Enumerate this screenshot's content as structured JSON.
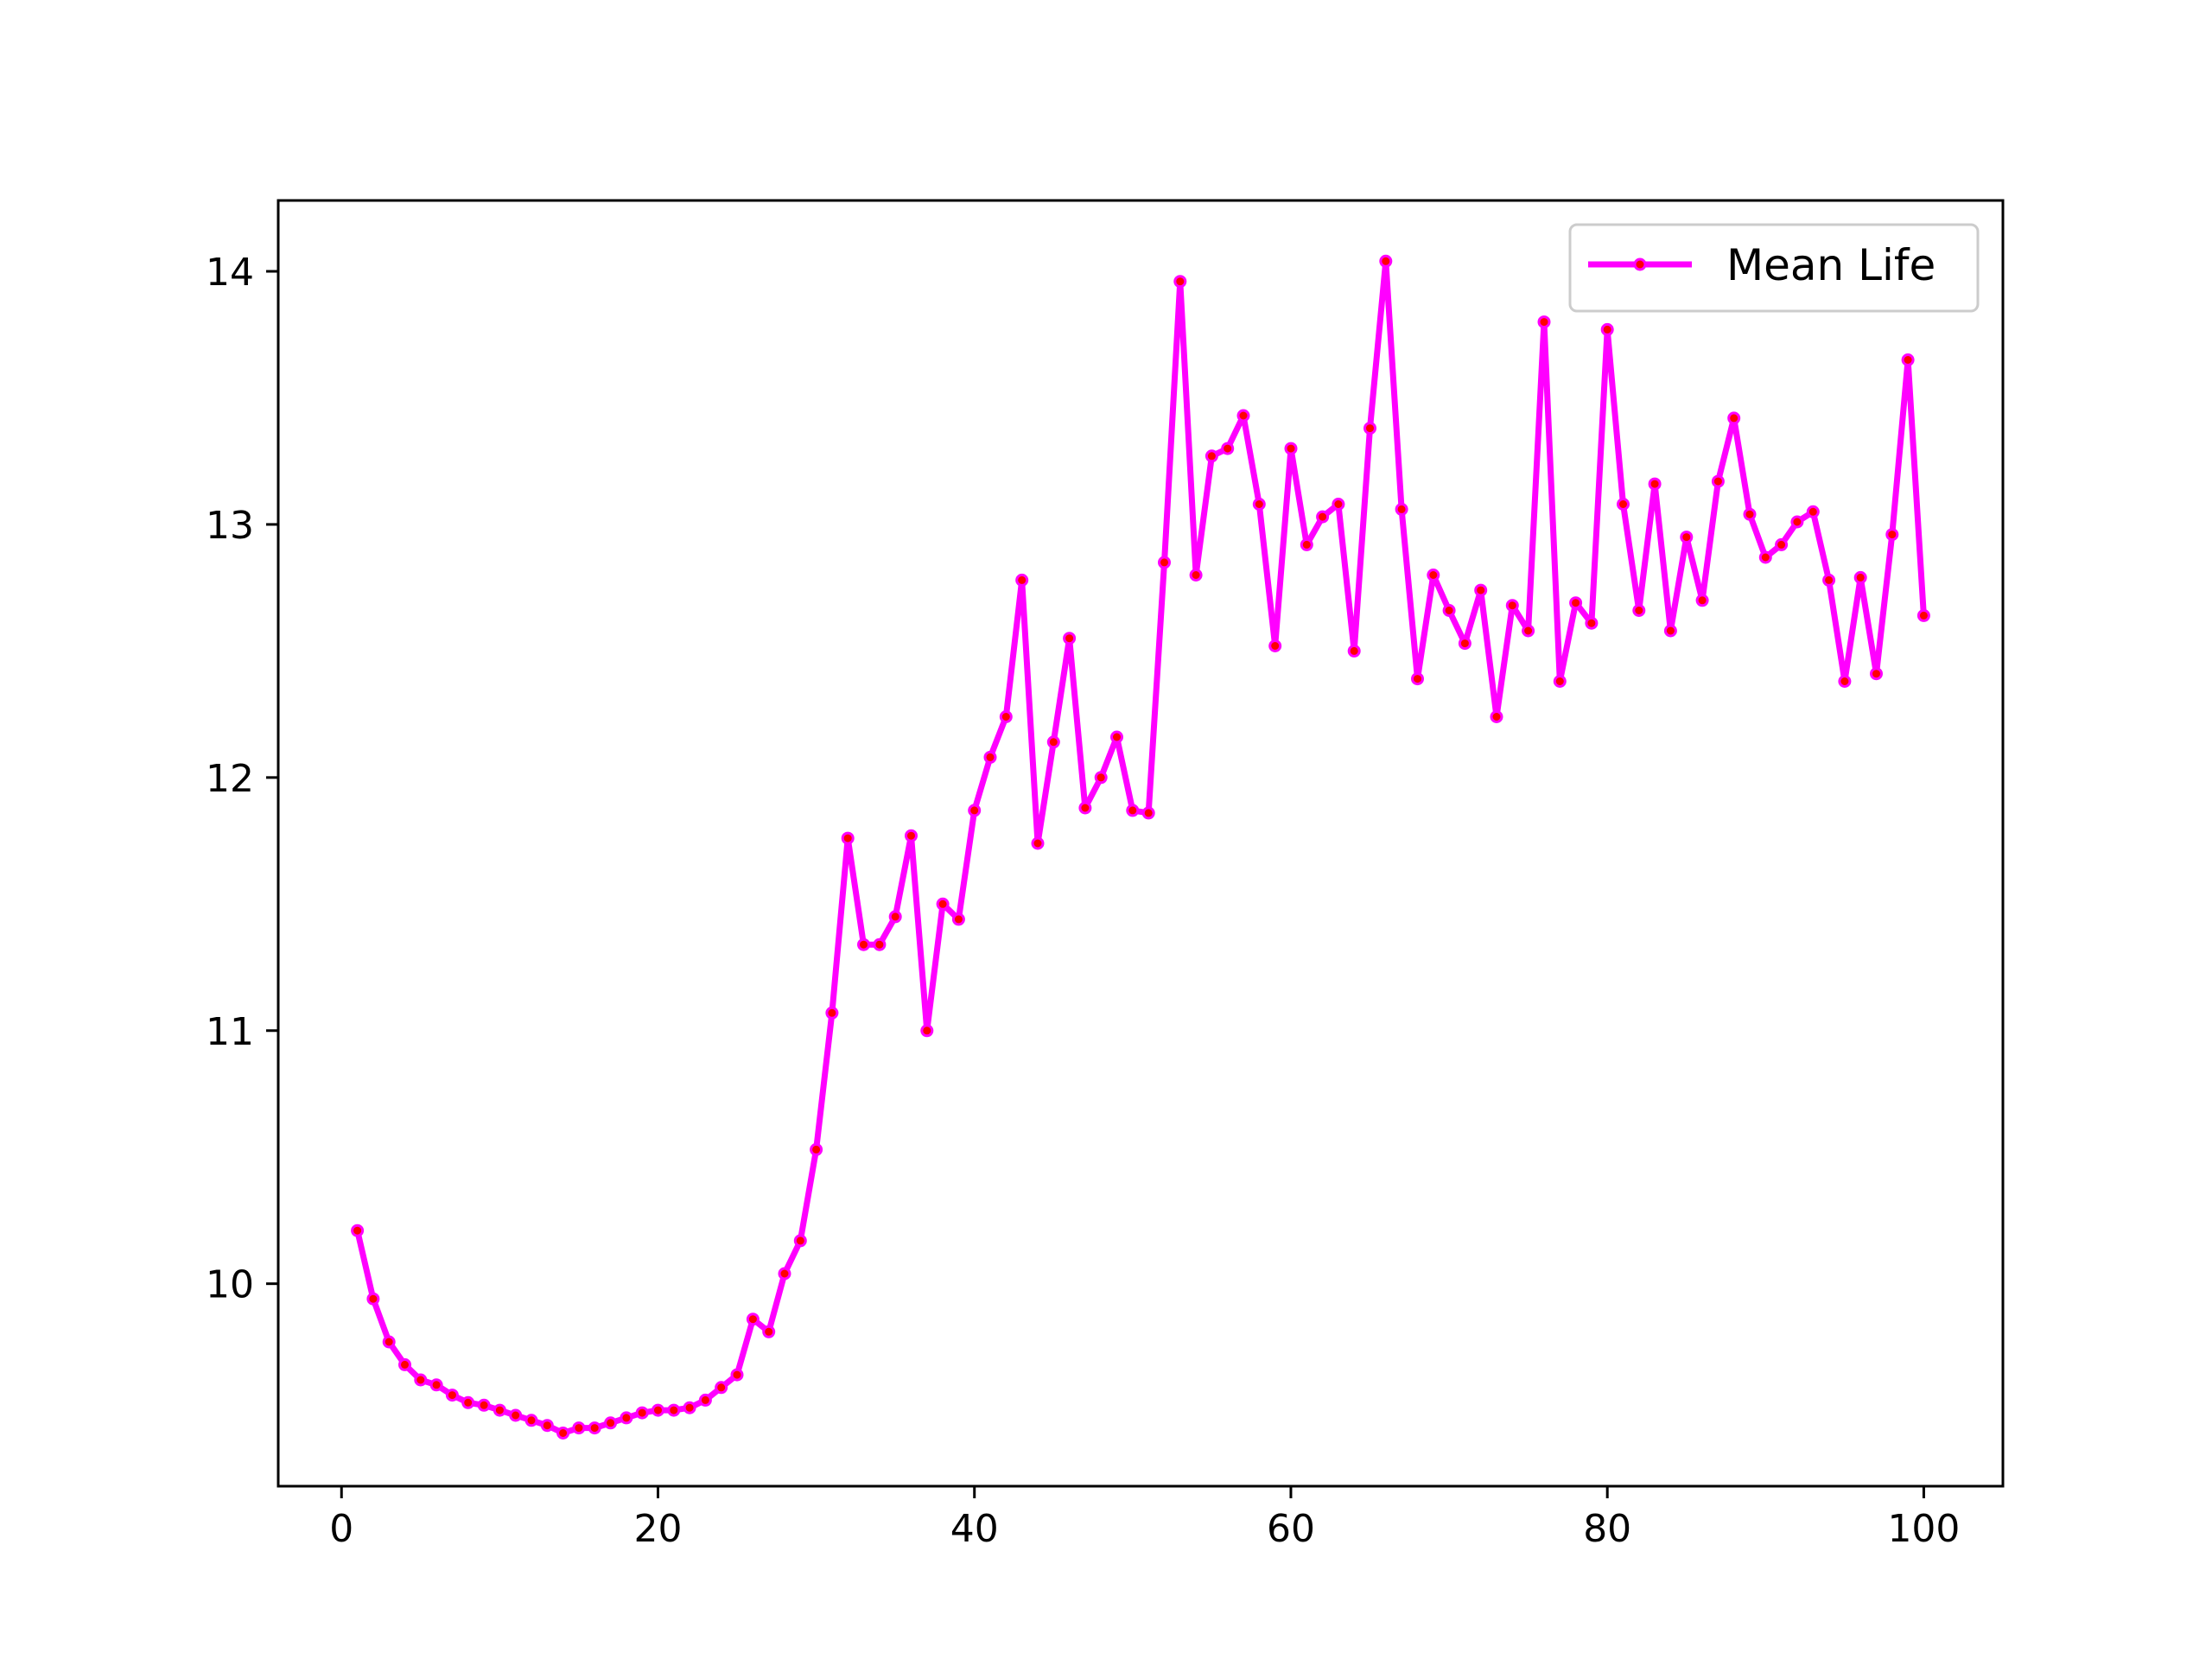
{
  "chart_data": {
    "type": "line",
    "title": "",
    "xlabel": "",
    "ylabel": "",
    "xlim": [
      -4,
      105
    ],
    "ylim": [
      9.2,
      14.28
    ],
    "xticks": [
      0,
      20,
      40,
      60,
      80,
      100
    ],
    "yticks": [
      10,
      11,
      12,
      13,
      14
    ],
    "grid": false,
    "legend_position": "top-right",
    "colors": {
      "line": "#ff00ff",
      "marker": "#ff0000",
      "axes": "#000000",
      "legend_border": "#cccccc"
    },
    "series": [
      {
        "name": "Mean Life",
        "x": [
          1,
          2,
          3,
          4,
          5,
          6,
          7,
          8,
          9,
          10,
          11,
          12,
          13,
          14,
          15,
          16,
          17,
          18,
          19,
          20,
          21,
          22,
          23,
          24,
          25,
          26,
          27,
          28,
          29,
          30,
          31,
          32,
          33,
          34,
          35,
          36,
          37,
          38,
          39,
          40,
          41,
          42,
          43,
          44,
          45,
          46,
          47,
          48,
          49,
          50,
          51,
          52,
          53,
          54,
          55,
          56,
          57,
          58,
          59,
          60,
          61,
          62,
          63,
          64,
          65,
          66,
          67,
          68,
          69,
          70,
          71,
          72,
          73,
          74,
          75,
          76,
          77,
          78,
          79,
          80,
          81,
          82,
          83,
          84,
          85,
          86,
          87,
          88,
          89,
          90,
          91,
          92,
          93,
          94,
          95,
          96,
          97,
          98,
          99,
          100
        ],
        "y": [
          10.21,
          9.94,
          9.77,
          9.68,
          9.62,
          9.6,
          9.56,
          9.53,
          9.52,
          9.5,
          9.48,
          9.46,
          9.44,
          9.41,
          9.43,
          9.43,
          9.45,
          9.47,
          9.49,
          9.5,
          9.5,
          9.51,
          9.54,
          9.59,
          9.64,
          9.86,
          9.81,
          10.04,
          10.17,
          10.53,
          11.07,
          11.76,
          11.34,
          11.34,
          11.45,
          11.77,
          11.0,
          11.5,
          11.44,
          11.87,
          12.08,
          12.24,
          12.78,
          11.74,
          12.14,
          12.55,
          11.88,
          12.0,
          12.16,
          11.87,
          11.86,
          12.85,
          13.96,
          12.8,
          13.27,
          13.3,
          13.43,
          13.08,
          12.52,
          13.3,
          12.92,
          13.03,
          13.08,
          12.5,
          13.38,
          14.04,
          13.06,
          12.39,
          12.8,
          12.66,
          12.53,
          12.74,
          12.24,
          12.68,
          12.58,
          13.8,
          12.38,
          12.69,
          12.61,
          13.77,
          13.08,
          12.66,
          13.16,
          12.58,
          12.95,
          12.7,
          13.17,
          13.42,
          13.04,
          12.87,
          12.92,
          13.01,
          13.05,
          12.78,
          12.38,
          12.79,
          12.41,
          12.96,
          13.65,
          12.64
        ]
      }
    ]
  }
}
